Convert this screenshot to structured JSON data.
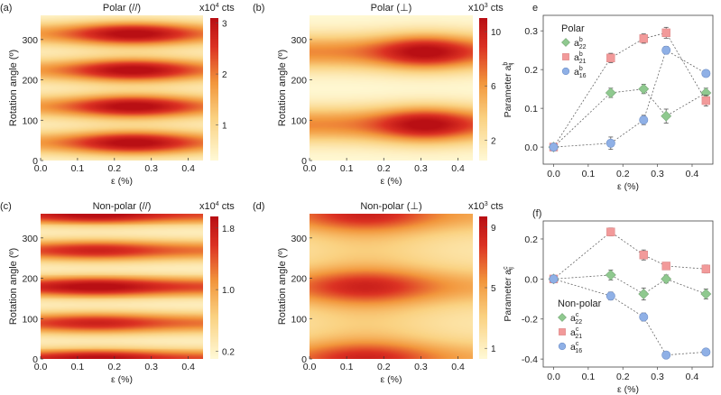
{
  "colors": {
    "green": "#8fc98f",
    "red": "#f29a9a",
    "blue": "#8fb0e6",
    "line": "#666666"
  },
  "chart_data": [
    {
      "id": "a",
      "type": "heatmap",
      "panel_label": "(a)",
      "title": "Polar (//)",
      "unit": "x10",
      "unit_exp": "4",
      "unit_suffix": " cts",
      "xlabel": "ε (%)",
      "ylabel": "Rotation angle (º)",
      "xlim": [
        0,
        0.44
      ],
      "ylim": [
        0,
        360
      ],
      "xticks": [
        "0.0",
        "0.1",
        "0.2",
        "0.3",
        "0.4"
      ],
      "yticks": [
        "0",
        "100",
        "200",
        "300"
      ],
      "cbar_ticks": [
        "1",
        "2",
        "3"
      ],
      "cbar_values": [
        1,
        2,
        3
      ],
      "cbar_range": [
        0.3,
        3.1
      ],
      "peak_angles": [
        45,
        135,
        225,
        315
      ],
      "peak_strain": 0.25
    },
    {
      "id": "b",
      "type": "heatmap",
      "panel_label": "(b)",
      "title": "Polar (⊥)",
      "unit": "x10",
      "unit_exp": "3",
      "unit_suffix": " cts",
      "xlabel": "ε (%)",
      "ylabel": "Rotation angle (º)",
      "xlim": [
        0,
        0.44
      ],
      "ylim": [
        0,
        360
      ],
      "xticks": [
        "0.0",
        "0.1",
        "0.2",
        "0.3",
        "0.4"
      ],
      "yticks": [
        "0",
        "100",
        "200",
        "300"
      ],
      "cbar_ticks": [
        "2",
        "6",
        "10"
      ],
      "cbar_values": [
        2,
        6,
        10
      ],
      "cbar_range": [
        0.5,
        11
      ],
      "peak_angles": [
        90,
        270
      ],
      "peak_strain": 0.31
    },
    {
      "id": "c",
      "type": "heatmap",
      "panel_label": "(c)",
      "title": "Non-polar (//)",
      "unit": "x10",
      "unit_exp": "4",
      "unit_suffix": " cts",
      "xlabel": "ε (%)",
      "ylabel": "Rotation angle (º)",
      "xlim": [
        0,
        0.44
      ],
      "ylim": [
        0,
        360
      ],
      "xticks": [
        "0.0",
        "0.1",
        "0.2",
        "0.3",
        "0.4"
      ],
      "yticks": [
        "0",
        "100",
        "200",
        "300"
      ],
      "cbar_ticks": [
        "0.2",
        "1.0",
        "1.8"
      ],
      "cbar_values": [
        0.2,
        1.0,
        1.8
      ],
      "cbar_range": [
        0.1,
        1.95
      ],
      "peak_angles": [
        0,
        90,
        180,
        270,
        360
      ],
      "peak_strain": 0.15
    },
    {
      "id": "d",
      "type": "heatmap",
      "panel_label": "(d)",
      "title": "Non-polar (⊥)",
      "unit": "x10",
      "unit_exp": "3",
      "unit_suffix": " cts",
      "xlabel": "ε (%)",
      "ylabel": "Rotation angle (º)",
      "xlim": [
        0,
        0.44
      ],
      "ylim": [
        0,
        360
      ],
      "xticks": [
        "0.0",
        "0.1",
        "0.2",
        "0.3",
        "0.4"
      ],
      "yticks": [
        "0",
        "100",
        "200",
        "300"
      ],
      "cbar_ticks": [
        "1",
        "5",
        "9"
      ],
      "cbar_values": [
        1,
        5,
        9
      ],
      "cbar_range": [
        0.3,
        9.7
      ],
      "peak_angles": [
        0,
        180,
        360
      ],
      "peak_strain": 0.15
    },
    {
      "id": "e",
      "type": "scatter",
      "panel_label": "e",
      "legend_title": "Polar",
      "xlabel": "ε (%)",
      "ylabel": "Parameter a",
      "ylabel_sup": "b",
      "ylabel_sub": "ij",
      "xlim": [
        -0.03,
        0.46
      ],
      "ylim": [
        -0.044,
        0.34
      ],
      "xticks": [
        0,
        0.1,
        0.2,
        0.3,
        0.4
      ],
      "xtick_labels": [
        "0.0",
        "0.1",
        "0.2",
        "0.3",
        "0.4"
      ],
      "yticks": [
        0,
        0.1,
        0.2,
        0.3
      ],
      "ytick_labels": [
        "0.0",
        "0.1",
        "0.2",
        "0.3"
      ],
      "legend_placement": "top-left",
      "x": [
        0,
        0.165,
        0.26,
        0.325,
        0.44
      ],
      "series": [
        {
          "name": "a",
          "sup": "b",
          "sub": "22",
          "marker": "diamond",
          "color": "green",
          "values": [
            0,
            0.14,
            0.15,
            0.08,
            0.14
          ],
          "errors": [
            0.005,
            0.012,
            0.012,
            0.018,
            0.012
          ]
        },
        {
          "name": "a",
          "sup": "b",
          "sub": "21",
          "marker": "square",
          "color": "red",
          "values": [
            0,
            0.23,
            0.28,
            0.295,
            0.12
          ],
          "errors": [
            0.005,
            0.012,
            0.012,
            0.014,
            0.014
          ]
        },
        {
          "name": "a",
          "sup": "b",
          "sub": "16",
          "marker": "circle",
          "color": "blue",
          "values": [
            0,
            0.01,
            0.07,
            0.25,
            0.19
          ],
          "errors": [
            0.005,
            0.016,
            0.012,
            0.01,
            0.008
          ]
        }
      ]
    },
    {
      "id": "f",
      "type": "scatter",
      "panel_label": "(f)",
      "legend_title": "Non-polar",
      "xlabel": "ε (%)",
      "ylabel": "Parameter a",
      "ylabel_sup": "c",
      "ylabel_sub": "ij",
      "xlim": [
        -0.03,
        0.46
      ],
      "ylim": [
        -0.44,
        0.29
      ],
      "xticks": [
        0,
        0.1,
        0.2,
        0.3,
        0.4
      ],
      "xtick_labels": [
        "0.0",
        "0.1",
        "0.2",
        "0.3",
        "0.4"
      ],
      "yticks": [
        -0.4,
        -0.2,
        0,
        0.2
      ],
      "ytick_labels": [
        "-0.4",
        "-0.2",
        "0.0",
        "0.2"
      ],
      "legend_placement": "bottom-left",
      "x": [
        0,
        0.165,
        0.26,
        0.325,
        0.44
      ],
      "series": [
        {
          "name": "a",
          "sup": "c",
          "sub": "22",
          "marker": "diamond",
          "color": "green",
          "values": [
            0,
            0.02,
            -0.075,
            0,
            -0.075
          ],
          "errors": [
            0.005,
            0.025,
            0.03,
            0.02,
            0.025
          ]
        },
        {
          "name": "a",
          "sup": "c",
          "sub": "21",
          "marker": "square",
          "color": "red",
          "values": [
            0,
            0.235,
            0.12,
            0.065,
            0.05
          ],
          "errors": [
            0.005,
            0.02,
            0.025,
            0.015,
            0.02
          ]
        },
        {
          "name": "a",
          "sup": "c",
          "sub": "16",
          "marker": "circle",
          "color": "blue",
          "values": [
            0,
            -0.085,
            -0.19,
            -0.38,
            -0.365
          ],
          "errors": [
            0.005,
            0.02,
            0.02,
            0.015,
            0.015
          ]
        }
      ]
    }
  ]
}
